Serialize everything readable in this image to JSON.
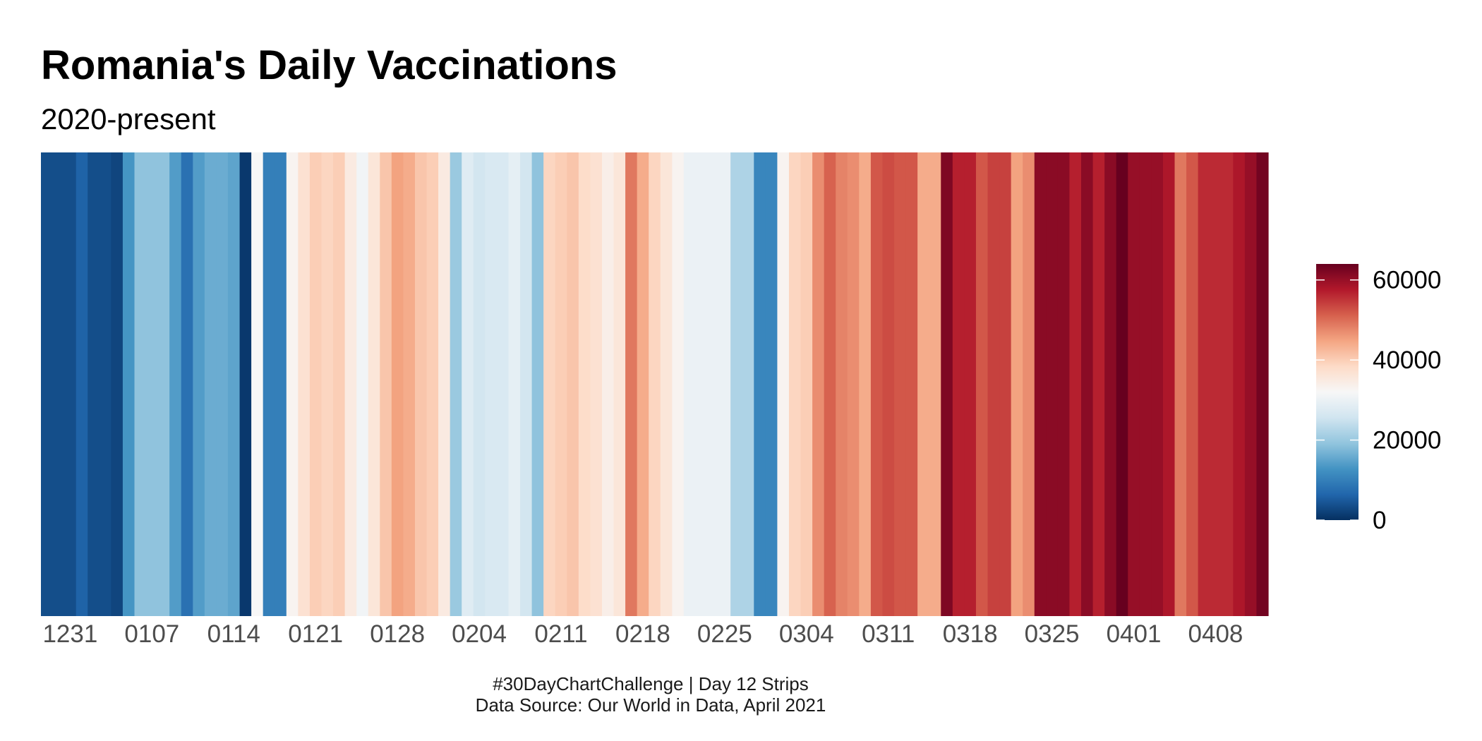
{
  "chart_data": {
    "type": "heatmap",
    "title": "Romania's Daily Vaccinations",
    "subtitle": "2020-present",
    "caption": [
      "#30DayChartChallenge | Day 12 Strips",
      "Data Source: Our World in Data, April 2021"
    ],
    "color_scale": {
      "colors": [
        "#053061",
        "#2166ac",
        "#4393c3",
        "#92c5de",
        "#d1e5f0",
        "#f7f7f7",
        "#fddbc7",
        "#f4a582",
        "#d6604d",
        "#b2182b",
        "#67001f"
      ],
      "limits": [
        0,
        64000
      ],
      "breaks": [
        0,
        20000,
        40000,
        60000
      ],
      "break_labels": [
        "0",
        "20000",
        "40000",
        "60000"
      ]
    },
    "x_tick_labels": [
      "1231",
      "0107",
      "0114",
      "0121",
      "0128",
      "0204",
      "0211",
      "0218",
      "0225",
      "0304",
      "0311",
      "0318",
      "0325",
      "0401",
      "0408"
    ],
    "x_tick_days": [
      "2020-12-31",
      "2021-01-07",
      "2021-01-14",
      "2021-01-21",
      "2021-01-28",
      "2021-02-04",
      "2021-02-11",
      "2021-02-18",
      "2021-02-25",
      "2021-03-04",
      "2021-03-11",
      "2021-03-18",
      "2021-03-25",
      "2021-04-01",
      "2021-04-08"
    ],
    "dates": [
      "2020-12-29",
      "2020-12-30",
      "2020-12-31",
      "2021-01-01",
      "2021-01-02",
      "2021-01-03",
      "2021-01-04",
      "2021-01-05",
      "2021-01-06",
      "2021-01-07",
      "2021-01-08",
      "2021-01-09",
      "2021-01-10",
      "2021-01-11",
      "2021-01-12",
      "2021-01-13",
      "2021-01-14",
      "2021-01-15",
      "2021-01-16",
      "2021-01-17",
      "2021-01-18",
      "2021-01-19",
      "2021-01-20",
      "2021-01-21",
      "2021-01-22",
      "2021-01-23",
      "2021-01-24",
      "2021-01-25",
      "2021-01-26",
      "2021-01-27",
      "2021-01-28",
      "2021-01-29",
      "2021-01-30",
      "2021-01-31",
      "2021-02-01",
      "2021-02-02",
      "2021-02-03",
      "2021-02-04",
      "2021-02-05",
      "2021-02-06",
      "2021-02-07",
      "2021-02-08",
      "2021-02-09",
      "2021-02-10",
      "2021-02-11",
      "2021-02-12",
      "2021-02-13",
      "2021-02-14",
      "2021-02-15",
      "2021-02-16",
      "2021-02-17",
      "2021-02-18",
      "2021-02-19",
      "2021-02-20",
      "2021-02-21",
      "2021-02-22",
      "2021-02-23",
      "2021-02-24",
      "2021-02-25",
      "2021-02-26",
      "2021-02-27",
      "2021-02-28",
      "2021-03-01",
      "2021-03-02",
      "2021-03-03",
      "2021-03-04",
      "2021-03-05",
      "2021-03-06",
      "2021-03-07",
      "2021-03-08",
      "2021-03-09",
      "2021-03-10",
      "2021-03-11",
      "2021-03-12",
      "2021-03-13",
      "2021-03-14",
      "2021-03-15",
      "2021-03-16",
      "2021-03-17",
      "2021-03-18",
      "2021-03-19",
      "2021-03-20",
      "2021-03-21",
      "2021-03-22",
      "2021-03-23",
      "2021-03-24",
      "2021-03-25",
      "2021-03-26",
      "2021-03-27",
      "2021-03-28",
      "2021-03-29",
      "2021-03-30",
      "2021-03-31",
      "2021-04-01",
      "2021-04-02",
      "2021-04-03",
      "2021-04-04",
      "2021-04-05",
      "2021-04-06",
      "2021-04-07",
      "2021-04-08",
      "2021-04-09",
      "2021-04-10",
      "2021-04-11",
      "2021-04-12"
    ],
    "values": [
      3500,
      3500,
      3500,
      6000,
      3500,
      3500,
      2500,
      13000,
      19000,
      19000,
      19000,
      14000,
      8000,
      14000,
      16000,
      16000,
      15000,
      1000,
      32000,
      10000,
      10000,
      33000,
      37000,
      40000,
      39000,
      40000,
      35000,
      31000,
      36000,
      41000,
      45000,
      44000,
      41000,
      40000,
      35000,
      20000,
      28000,
      26000,
      27000,
      27000,
      29000,
      26000,
      19000,
      39000,
      40000,
      41000,
      38000,
      37000,
      34000,
      36000,
      49000,
      44000,
      39000,
      36000,
      33000,
      30000,
      30000,
      30000,
      30000,
      22000,
      22000,
      11000,
      11000,
      33000,
      39000,
      40000,
      47000,
      51000,
      48000,
      47000,
      44000,
      52000,
      53000,
      52000,
      52000,
      44000,
      44000,
      62000,
      57000,
      57000,
      52000,
      54000,
      54000,
      45000,
      47000,
      61000,
      61000,
      61000,
      57000,
      61000,
      57000,
      61000,
      64000,
      60000,
      60000,
      60000,
      58000,
      49000,
      52000,
      56000,
      56000,
      56000,
      58000,
      60000,
      63000
    ]
  }
}
